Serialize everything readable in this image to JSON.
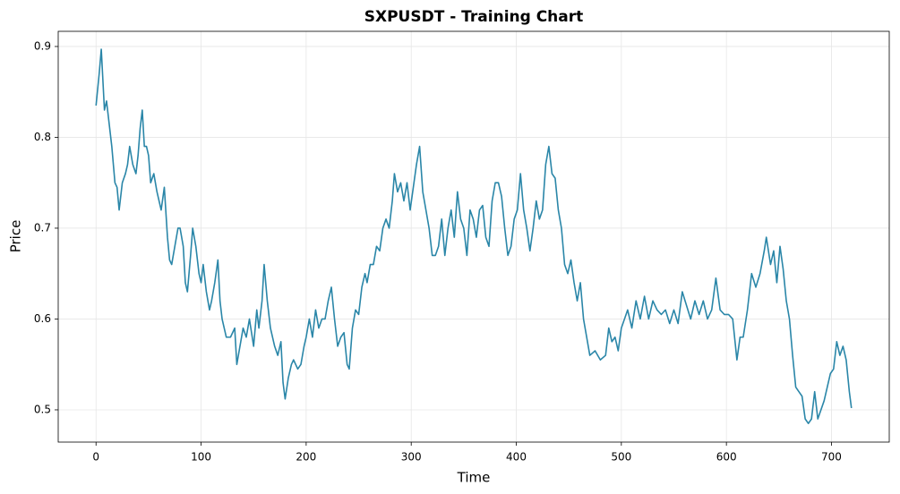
{
  "chart_data": {
    "type": "line",
    "title": "SXPUSDT - Training Chart",
    "x_label": "Time",
    "y_label": "Price",
    "x": [
      0,
      3,
      5,
      8,
      10,
      12,
      15,
      18,
      20,
      22,
      25,
      28,
      30,
      32,
      35,
      38,
      40,
      42,
      44,
      46,
      48,
      50,
      52,
      55,
      58,
      62,
      65,
      68,
      70,
      72,
      75,
      78,
      80,
      83,
      85,
      87,
      90,
      92,
      95,
      98,
      100,
      102,
      105,
      108,
      110,
      113,
      116,
      118,
      120,
      124,
      128,
      132,
      134,
      137,
      140,
      143,
      146,
      150,
      153,
      155,
      158,
      160,
      163,
      166,
      170,
      173,
      176,
      178,
      180,
      183,
      186,
      188,
      192,
      195,
      198,
      200,
      203,
      206,
      209,
      212,
      215,
      218,
      221,
      224,
      227,
      230,
      233,
      236,
      239,
      241,
      244,
      247,
      250,
      253,
      256,
      258,
      261,
      264,
      267,
      270,
      273,
      276,
      279,
      282,
      284,
      287,
      290,
      293,
      296,
      299,
      302,
      305,
      308,
      311,
      314,
      317,
      320,
      323,
      326,
      329,
      332,
      335,
      338,
      341,
      344,
      347,
      350,
      353,
      356,
      359,
      362,
      365,
      368,
      371,
      374,
      377,
      380,
      383,
      386,
      389,
      392,
      395,
      398,
      401,
      404,
      407,
      410,
      413,
      416,
      419,
      422,
      425,
      428,
      431,
      434,
      437,
      440,
      443,
      446,
      449,
      452,
      455,
      458,
      461,
      464,
      467,
      470,
      475,
      480,
      485,
      488,
      491,
      494,
      497,
      500,
      503,
      506,
      510,
      514,
      518,
      522,
      526,
      530,
      534,
      538,
      542,
      546,
      550,
      554,
      558,
      562,
      566,
      570,
      574,
      578,
      582,
      586,
      590,
      594,
      598,
      602,
      606,
      610,
      613,
      616,
      620,
      624,
      628,
      632,
      636,
      638,
      642,
      645,
      648,
      651,
      654,
      657,
      660,
      663,
      666,
      669,
      672,
      675,
      678,
      681,
      684,
      687,
      690,
      693,
      696,
      699,
      702,
      705,
      708,
      711,
      714,
      717,
      719
    ],
    "series": [
      {
        "name": "Price",
        "color": "#2a86a8",
        "values": [
          0.835,
          0.87,
          0.897,
          0.83,
          0.84,
          0.82,
          0.79,
          0.75,
          0.745,
          0.72,
          0.75,
          0.76,
          0.77,
          0.79,
          0.77,
          0.76,
          0.78,
          0.81,
          0.83,
          0.79,
          0.79,
          0.78,
          0.75,
          0.76,
          0.74,
          0.72,
          0.745,
          0.69,
          0.665,
          0.66,
          0.68,
          0.7,
          0.7,
          0.68,
          0.64,
          0.63,
          0.67,
          0.7,
          0.68,
          0.65,
          0.64,
          0.66,
          0.63,
          0.61,
          0.62,
          0.64,
          0.665,
          0.62,
          0.6,
          0.58,
          0.58,
          0.59,
          0.55,
          0.57,
          0.59,
          0.58,
          0.6,
          0.57,
          0.61,
          0.59,
          0.62,
          0.66,
          0.62,
          0.59,
          0.57,
          0.56,
          0.575,
          0.53,
          0.512,
          0.535,
          0.55,
          0.555,
          0.545,
          0.55,
          0.57,
          0.58,
          0.6,
          0.58,
          0.61,
          0.59,
          0.6,
          0.6,
          0.62,
          0.635,
          0.6,
          0.57,
          0.58,
          0.585,
          0.55,
          0.545,
          0.59,
          0.61,
          0.605,
          0.635,
          0.65,
          0.64,
          0.66,
          0.66,
          0.68,
          0.675,
          0.7,
          0.71,
          0.7,
          0.73,
          0.76,
          0.74,
          0.75,
          0.73,
          0.75,
          0.72,
          0.745,
          0.77,
          0.79,
          0.74,
          0.72,
          0.7,
          0.67,
          0.67,
          0.68,
          0.71,
          0.67,
          0.7,
          0.72,
          0.69,
          0.74,
          0.71,
          0.7,
          0.67,
          0.72,
          0.71,
          0.69,
          0.72,
          0.725,
          0.69,
          0.68,
          0.73,
          0.75,
          0.75,
          0.735,
          0.7,
          0.67,
          0.68,
          0.71,
          0.72,
          0.76,
          0.72,
          0.7,
          0.675,
          0.7,
          0.73,
          0.71,
          0.72,
          0.77,
          0.79,
          0.76,
          0.755,
          0.72,
          0.7,
          0.66,
          0.65,
          0.665,
          0.64,
          0.62,
          0.64,
          0.6,
          0.58,
          0.56,
          0.565,
          0.555,
          0.56,
          0.59,
          0.575,
          0.58,
          0.565,
          0.59,
          0.6,
          0.61,
          0.59,
          0.62,
          0.6,
          0.625,
          0.6,
          0.62,
          0.61,
          0.605,
          0.61,
          0.595,
          0.61,
          0.595,
          0.63,
          0.615,
          0.6,
          0.62,
          0.605,
          0.62,
          0.6,
          0.61,
          0.645,
          0.61,
          0.605,
          0.605,
          0.6,
          0.555,
          0.58,
          0.58,
          0.61,
          0.65,
          0.635,
          0.65,
          0.675,
          0.69,
          0.66,
          0.675,
          0.64,
          0.68,
          0.655,
          0.62,
          0.6,
          0.56,
          0.525,
          0.52,
          0.515,
          0.49,
          0.485,
          0.49,
          0.52,
          0.49,
          0.5,
          0.51,
          0.525,
          0.54,
          0.545,
          0.575,
          0.56,
          0.57,
          0.555,
          0.52,
          0.502
        ]
      }
    ],
    "xlim": [
      -36,
      755
    ],
    "ylim": [
      0.4645,
      0.9167
    ],
    "xticks": [
      0,
      100,
      200,
      300,
      400,
      500,
      600,
      700
    ],
    "yticks": [
      0.5,
      0.6,
      0.7,
      0.8,
      0.9
    ],
    "grid": true
  }
}
